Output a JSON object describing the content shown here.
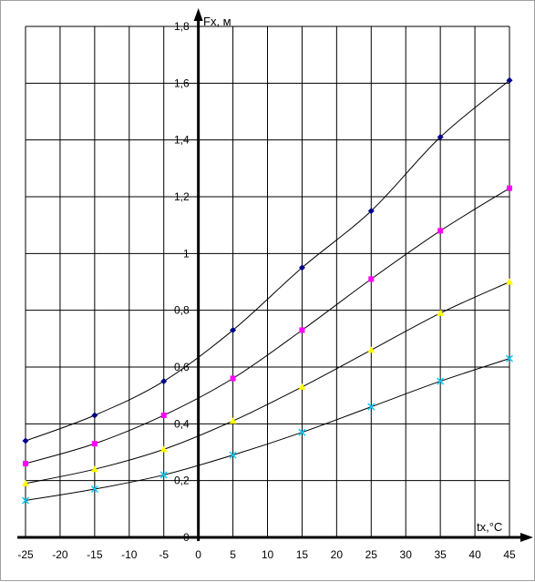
{
  "chart_data": {
    "type": "line",
    "title": "",
    "xlabel": "tx,°C",
    "ylabel": "Fx, м",
    "xlim": [
      -25,
      45
    ],
    "ylim": [
      0,
      1.8
    ],
    "grid": true,
    "x_ticks": [
      -25,
      -20,
      -15,
      -10,
      -5,
      0,
      5,
      10,
      15,
      20,
      25,
      30,
      35,
      40,
      45
    ],
    "x_tick_labels": [
      "-25",
      "-20",
      "-15",
      "-10",
      "-5",
      "0",
      "5",
      "10",
      "15",
      "20",
      "25",
      "30",
      "35",
      "40",
      "45"
    ],
    "y_ticks": [
      0,
      0.2,
      0.4,
      0.6,
      0.8,
      1,
      1.2,
      1.4,
      1.6,
      1.8
    ],
    "y_tick_labels": [
      "0",
      "0,2",
      "0,4",
      "0,6",
      "0,8",
      "1",
      "1,2",
      "1,4",
      "1,6",
      "1,8"
    ],
    "series": [
      {
        "color": "#00008b",
        "marker": "diamond",
        "x": [
          -25,
          -15,
          -5,
          5,
          15,
          25,
          35,
          45
        ],
        "values": [
          0.34,
          0.43,
          0.55,
          0.73,
          0.95,
          1.15,
          1.41,
          1.61
        ]
      },
      {
        "color": "#ff00ff",
        "marker": "square",
        "x": [
          -25,
          -15,
          -5,
          5,
          15,
          25,
          35,
          45
        ],
        "values": [
          0.26,
          0.33,
          0.43,
          0.56,
          0.73,
          0.91,
          1.08,
          1.23
        ]
      },
      {
        "color": "#ffff00",
        "marker": "triangle",
        "x": [
          -25,
          -15,
          -5,
          5,
          15,
          25,
          35,
          45
        ],
        "values": [
          0.19,
          0.24,
          0.31,
          0.41,
          0.53,
          0.66,
          0.79,
          0.9
        ]
      },
      {
        "color": "#00ccff",
        "marker": "x",
        "x": [
          -25,
          -15,
          -5,
          5,
          15,
          25,
          35,
          45
        ],
        "values": [
          0.13,
          0.17,
          0.22,
          0.29,
          0.37,
          0.46,
          0.55,
          0.63
        ]
      }
    ]
  }
}
